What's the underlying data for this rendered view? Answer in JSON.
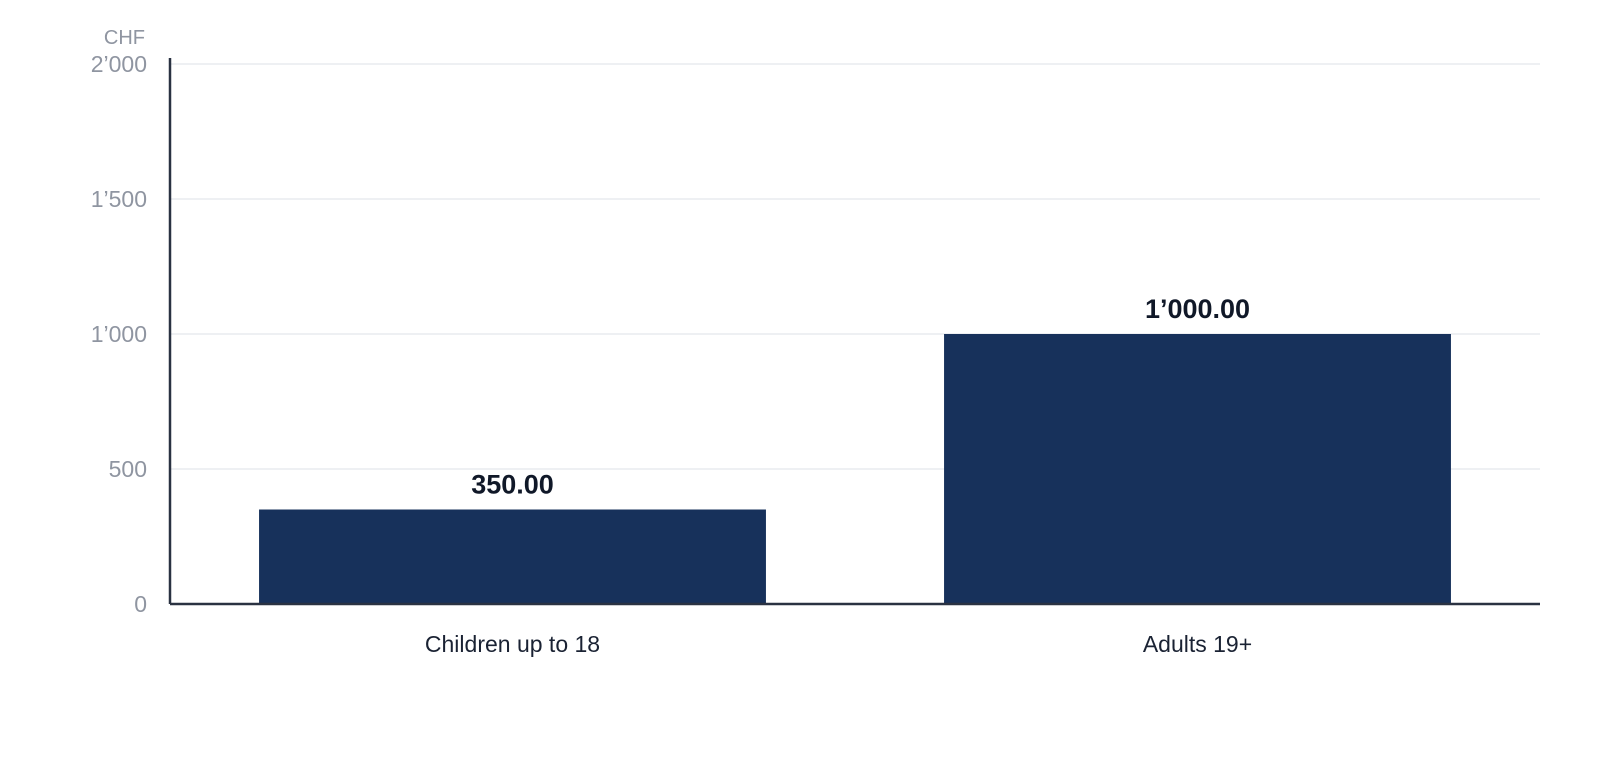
{
  "chart_data": {
    "type": "bar",
    "unit_label": "CHF",
    "categories": [
      "Children up to 18",
      "Adults 19+"
    ],
    "values": [
      350,
      1000
    ],
    "value_labels": [
      "350.00",
      "1’000.00"
    ],
    "ylim": [
      0,
      2000
    ],
    "yticks": [
      0,
      500,
      1000,
      1500,
      2000
    ],
    "ytick_labels": [
      "0",
      "500",
      "1’000",
      "1’500",
      "2’000"
    ],
    "grid": true,
    "legend": "none",
    "colors": {
      "bar": "#17315b",
      "axis": "#2a3242",
      "grid": "#e9ebef",
      "tick_text": "#8f95a1",
      "category_text": "#1a2233",
      "value_text": "#101828"
    }
  }
}
